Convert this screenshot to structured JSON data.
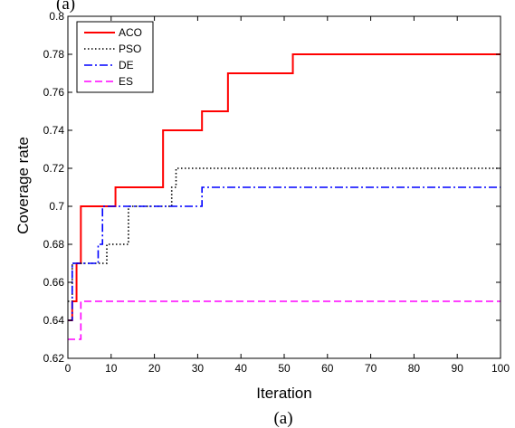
{
  "figure": {
    "caption": "(a)",
    "top_label": "(a)"
  },
  "chart_data": {
    "type": "line",
    "title": "",
    "xlabel": "Iteration",
    "ylabel": "Coverage rate",
    "xlim": [
      0,
      100
    ],
    "ylim": [
      0.62,
      0.8
    ],
    "xticks": [
      "0",
      "10",
      "20",
      "30",
      "40",
      "50",
      "60",
      "70",
      "80",
      "90",
      "100"
    ],
    "yticks": [
      "0.62",
      "0.64",
      "0.66",
      "0.68",
      "0.7",
      "0.72",
      "0.74",
      "0.76",
      "0.78",
      "0.8"
    ],
    "grid": false,
    "legend_position": "top-left",
    "step": true,
    "series": [
      {
        "name": "ACO",
        "color": "#ff0000",
        "dash": "solid",
        "x": [
          0,
          1,
          2,
          3,
          11,
          22,
          31,
          37,
          52,
          100
        ],
        "y": [
          0.64,
          0.65,
          0.67,
          0.7,
          0.71,
          0.74,
          0.75,
          0.77,
          0.78,
          0.78
        ]
      },
      {
        "name": "PSO",
        "color": "#000000",
        "dash": "dotted",
        "x": [
          0,
          1,
          9,
          14,
          24,
          25,
          100
        ],
        "y": [
          0.65,
          0.67,
          0.68,
          0.7,
          0.71,
          0.72,
          0.72
        ]
      },
      {
        "name": "DE",
        "color": "#0000ff",
        "dash": "dashdot",
        "x": [
          0,
          1,
          7,
          8,
          31,
          100
        ],
        "y": [
          0.64,
          0.67,
          0.68,
          0.7,
          0.71,
          0.71
        ]
      },
      {
        "name": "ES",
        "color": "#ff00ff",
        "dash": "dashed",
        "x": [
          0,
          1,
          3,
          100
        ],
        "y": [
          0.63,
          0.63,
          0.65,
          0.65
        ]
      }
    ]
  }
}
